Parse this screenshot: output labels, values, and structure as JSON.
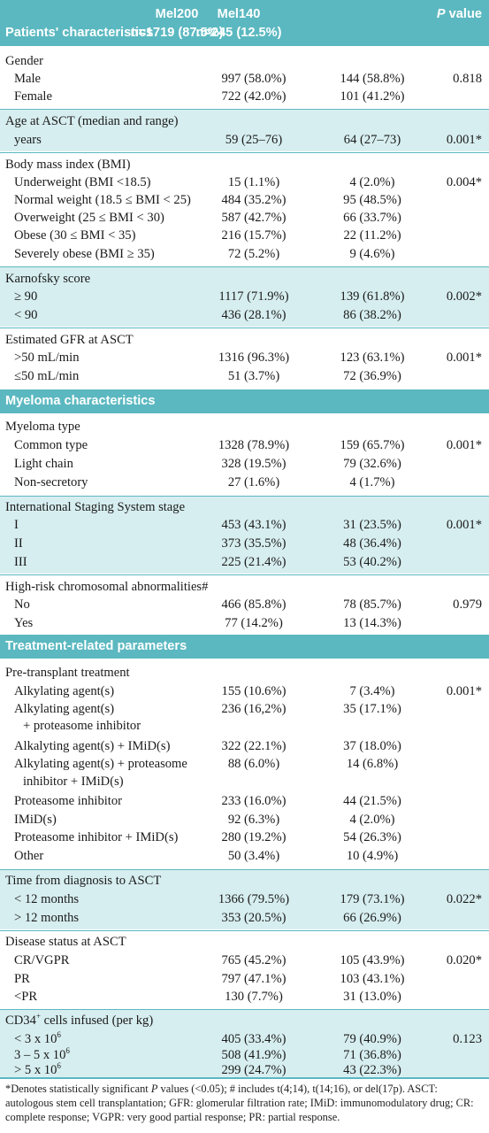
{
  "header": {
    "col1_title": "Patients' characteristics",
    "mel200_name": "Mel200",
    "mel200_n": "n=1719 (87.5%)",
    "mel140_name": "Mel140",
    "mel140_n": "n=245 (12.5%)",
    "p_italic": "P",
    "p_rest": " value"
  },
  "sections": {
    "myeloma": "Myeloma characteristics",
    "treatment": "Treatment-related parameters"
  },
  "rows": [
    {
      "label": "Gender",
      "a": "",
      "b": "",
      "p": ""
    },
    {
      "label": "Male",
      "a": "997 (58.0%)",
      "b": "144 (58.8%)",
      "p": "0.818"
    },
    {
      "label": "Female",
      "a": "722 (42.0%)",
      "b": "101 (41.2%)",
      "p": ""
    },
    {
      "label": "Age at ASCT (median and range)",
      "a": "",
      "b": "",
      "p": ""
    },
    {
      "label": "years",
      "a": "59 (25–76)",
      "b": "64 (27–73)",
      "p": "0.001*"
    },
    {
      "label": "Body mass index (BMI)",
      "a": "",
      "b": "",
      "p": ""
    },
    {
      "label": "Underweight (BMI <18.5)",
      "a": "15 (1.1%)",
      "b": "4 (2.0%)",
      "p": "0.004*"
    },
    {
      "label": "Normal weight (18.5 ≤ BMI < 25)",
      "a": "484 (35.2%)",
      "b": "95 (48.5%)",
      "p": ""
    },
    {
      "label": "Overweight (25 ≤ BMI < 30)",
      "a": "587 (42.7%)",
      "b": "66 (33.7%)",
      "p": ""
    },
    {
      "label": "Obese (30 ≤ BMI < 35)",
      "a": "216 (15.7%)",
      "b": "22 (11.2%)",
      "p": ""
    },
    {
      "label": "Severely obese (BMI ≥ 35)",
      "a": "72 (5.2%)",
      "b": "9 (4.6%)",
      "p": ""
    },
    {
      "label": "Karnofsky score",
      "a": "",
      "b": "",
      "p": ""
    },
    {
      "label": "≥ 90",
      "a": "1117 (71.9%)",
      "b": "139 (61.8%)",
      "p": "0.002*"
    },
    {
      "label": "< 90",
      "a": "436 (28.1%)",
      "b": "86 (38.2%)",
      "p": ""
    },
    {
      "label": "Estimated GFR at ASCT",
      "a": "",
      "b": "",
      "p": ""
    },
    {
      "label": ">50 mL/min",
      "a": "1316 (96.3%)",
      "b": "123 (63.1%)",
      "p": "0.001*"
    },
    {
      "label": "≤50 mL/min",
      "a": "51 (3.7%)",
      "b": "72 (36.9%)",
      "p": ""
    },
    {
      "label": "Myeloma type",
      "a": "",
      "b": "",
      "p": ""
    },
    {
      "label": "Common type",
      "a": "1328 (78.9%)",
      "b": "159 (65.7%)",
      "p": "0.001*"
    },
    {
      "label": "Light chain",
      "a": "328 (19.5%)",
      "b": "79 (32.6%)",
      "p": ""
    },
    {
      "label": "Non-secretory",
      "a": "27 (1.6%)",
      "b": "4 (1.7%)",
      "p": ""
    },
    {
      "label": "International Staging System stage",
      "a": "",
      "b": "",
      "p": ""
    },
    {
      "label": "I",
      "a": "453 (43.1%)",
      "b": "31 (23.5%)",
      "p": "0.001*"
    },
    {
      "label": "II",
      "a": "373 (35.5%)",
      "b": "48 (36.4%)",
      "p": ""
    },
    {
      "label": "III",
      "a": "225 (21.4%)",
      "b": "53 (40.2%)",
      "p": ""
    },
    {
      "label": "High-risk chromosomal abnormalities#",
      "a": "",
      "b": "",
      "p": ""
    },
    {
      "label": "No",
      "a": "466 (85.8%)",
      "b": "78 (85.7%)",
      "p": "0.979"
    },
    {
      "label": "Yes",
      "a": "77 (14.2%)",
      "b": "13 (14.3%)",
      "p": ""
    },
    {
      "label": "Pre-transplant treatment",
      "a": "",
      "b": "",
      "p": ""
    },
    {
      "label": "Alkylating agent(s)",
      "a": "155 (10.6%)",
      "b": "7 (3.4%)",
      "p": "0.001*"
    },
    {
      "label": "Alkylating agent(s)",
      "a": "236 (16,2%)",
      "b": "35 (17.1%)",
      "p": ""
    },
    {
      "label": "+ proteasome inhibitor",
      "a": "",
      "b": "",
      "p": ""
    },
    {
      "label": "Alkalyting agent(s) + IMiD(s)",
      "a": "322 (22.1%)",
      "b": "37 (18.0%)",
      "p": ""
    },
    {
      "label": "Alkylating agent(s) + proteasome",
      "a": "88 (6.0%)",
      "b": "14 (6.8%)",
      "p": ""
    },
    {
      "label": "inhibitor + IMiD(s)",
      "a": "",
      "b": "",
      "p": ""
    },
    {
      "label": "Proteasome inhibitor",
      "a": "233 (16.0%)",
      "b": "44 (21.5%)",
      "p": ""
    },
    {
      "label": "IMiD(s)",
      "a": "92 (6.3%)",
      "b": "4 (2.0%)",
      "p": ""
    },
    {
      "label": "Proteasome inhibitor + IMiD(s)",
      "a": "280 (19.2%)",
      "b": "54 (26.3%)",
      "p": ""
    },
    {
      "label": "Other",
      "a": "50 (3.4%)",
      "b": "10 (4.9%)",
      "p": ""
    },
    {
      "label": "Time from diagnosis to ASCT",
      "a": "",
      "b": "",
      "p": ""
    },
    {
      "label": "< 12 months",
      "a": "1366 (79.5%)",
      "b": "179 (73.1%)",
      "p": "0.022*"
    },
    {
      "label": "> 12 months",
      "a": "353 (20.5%)",
      "b": "66 (26.9%)",
      "p": ""
    },
    {
      "label": "Disease status at ASCT",
      "a": "",
      "b": "",
      "p": ""
    },
    {
      "label": "CR/VGPR",
      "a": "765 (45.2%)",
      "b": "105 (43.9%)",
      "p": "0.020*"
    },
    {
      "label": "PR",
      "a": "797 (47.1%)",
      "b": "103 (43.1%)",
      "p": ""
    },
    {
      "label": "<PR",
      "a": "130 (7.7%)",
      "b": "31 (13.0%)",
      "p": ""
    },
    {
      "label": "CD34",
      "label_sup": "+",
      "label_rest": " cells infused (per kg)",
      "a": "",
      "b": "",
      "p": ""
    },
    {
      "label": "< 3 x 10",
      "label_sup": "6",
      "a": "405 (33.4%)",
      "b": "79 (40.9%)",
      "p": "0.123"
    },
    {
      "label": "3 – 5 x 10",
      "label_sup": "6",
      "a": "508 (41.9%)",
      "b": "71 (36.8%)",
      "p": ""
    },
    {
      "label": "> 5 x 10",
      "label_sup": "6",
      "a": "299 (24.7%)",
      "b": "43 (22.3%)",
      "p": ""
    }
  ],
  "footnote": {
    "pre": "*Denotes statistically significant ",
    "p_italic": "P",
    "post": " values (<0.05); # includes t(4;14), t(14;16), or del(17p). ASCT: autologous stem cell transplantation; GFR: glomerular filtration rate; IMiD: immunomodulatory drug; CR: complete response; VGPR: very good partial response; PR: partial response."
  },
  "colors": {
    "accent": "#5bb8c0",
    "shade": "#d7eef0",
    "text": "#1a1a1a"
  }
}
